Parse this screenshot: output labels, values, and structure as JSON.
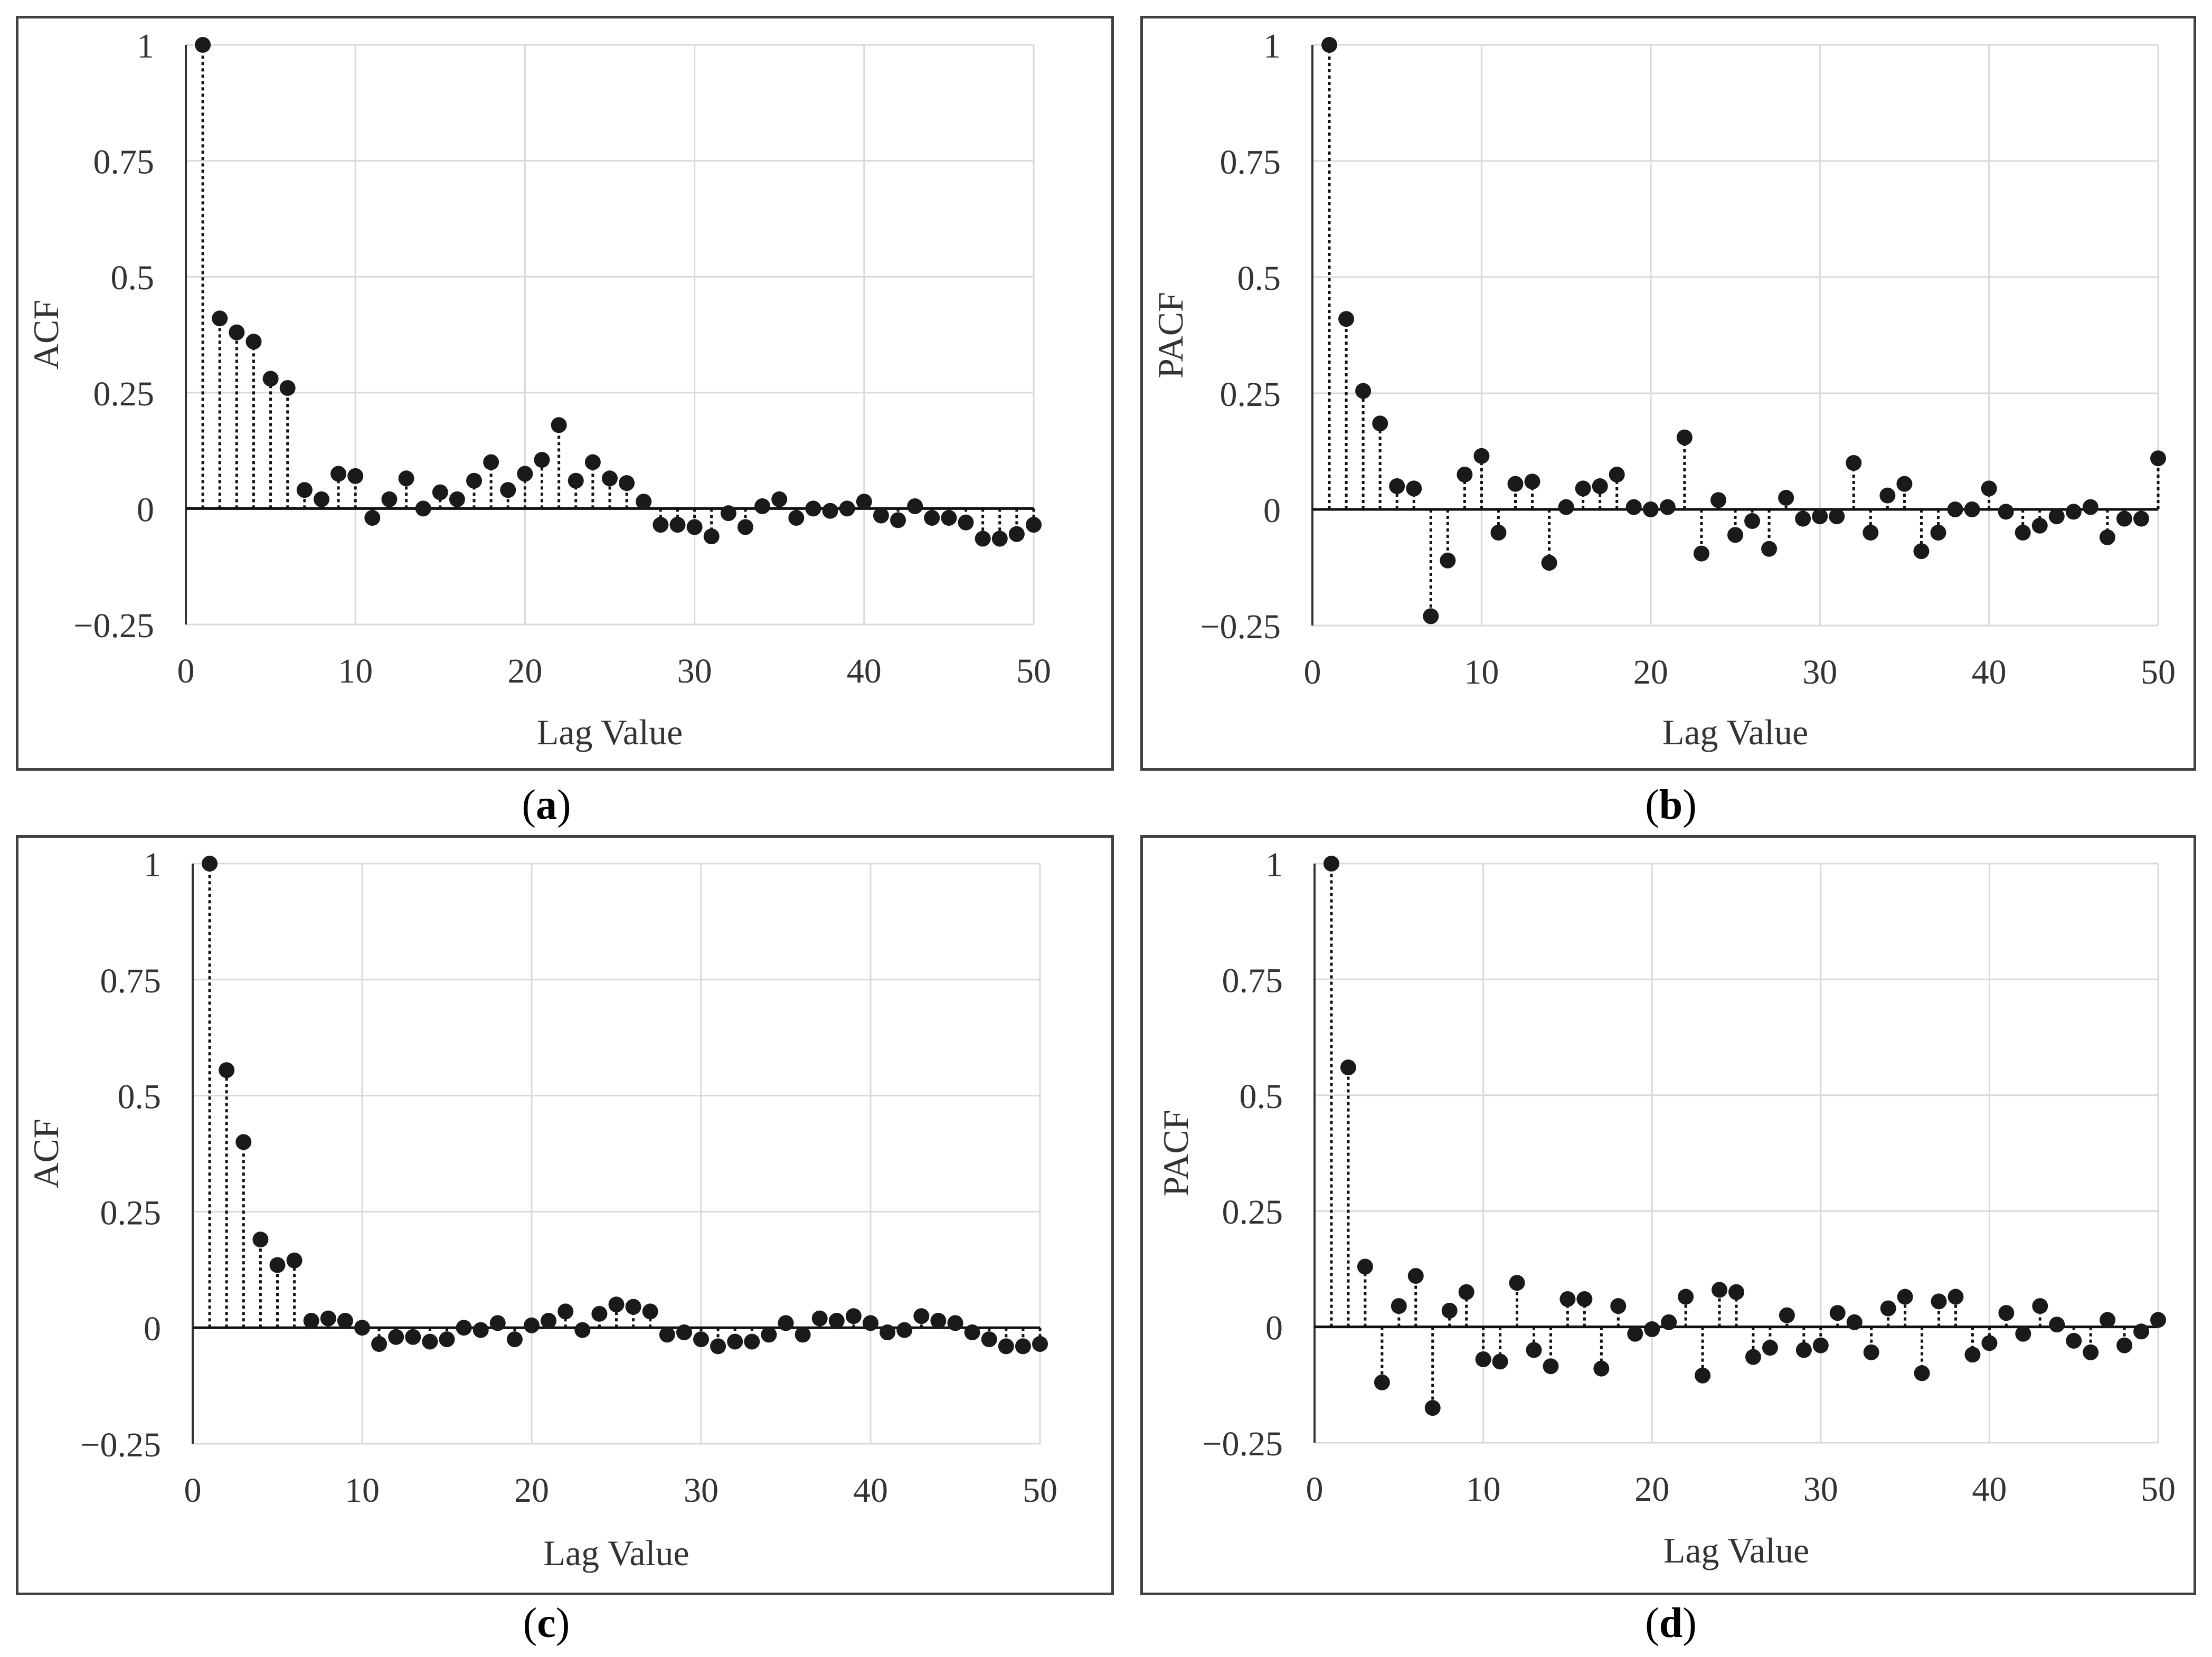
{
  "chart_data": [
    {
      "type": "stem",
      "label": "a",
      "ylabel": "ACF",
      "xlabel": "Lag Value",
      "xlim": [
        0,
        50
      ],
      "ylim": [
        -0.25,
        1
      ],
      "xticks": [
        "0",
        "10",
        "20",
        "30",
        "40",
        "50"
      ],
      "yticks": [
        "1",
        "0.75",
        "0.5",
        "0.25",
        "0",
        "−0.25"
      ],
      "grid": true,
      "lags": [
        1,
        2,
        3,
        4,
        5,
        6,
        7,
        8,
        9,
        10,
        11,
        12,
        13,
        14,
        15,
        16,
        17,
        18,
        19,
        20,
        21,
        22,
        23,
        24,
        25,
        26,
        27,
        28,
        29,
        30,
        31,
        32,
        33,
        34,
        35,
        36,
        37,
        38,
        39,
        40,
        41,
        42,
        43,
        44,
        45,
        46,
        47,
        48,
        49,
        50
      ],
      "values": [
        1.0,
        0.41,
        0.38,
        0.36,
        0.28,
        0.26,
        0.04,
        0.02,
        0.075,
        0.07,
        -0.02,
        0.02,
        0.065,
        0.0,
        0.035,
        0.02,
        0.06,
        0.1,
        0.04,
        0.075,
        0.105,
        0.18,
        0.06,
        0.1,
        0.065,
        0.055,
        0.015,
        -0.035,
        -0.035,
        -0.04,
        -0.06,
        -0.01,
        -0.04,
        0.005,
        0.02,
        -0.02,
        0.0,
        -0.005,
        0.0,
        0.015,
        -0.015,
        -0.025,
        0.005,
        -0.02,
        -0.02,
        -0.03,
        -0.065,
        -0.065,
        -0.055,
        -0.035
      ]
    },
    {
      "type": "stem",
      "label": "b",
      "ylabel": "PACF",
      "xlabel": "Lag Value",
      "xlim": [
        0,
        50
      ],
      "ylim": [
        -0.25,
        1
      ],
      "xticks": [
        "0",
        "10",
        "20",
        "30",
        "40",
        "50"
      ],
      "yticks": [
        "1",
        "0.75",
        "0.5",
        "0.25",
        "0",
        "−0.25"
      ],
      "grid": true,
      "lags": [
        1,
        2,
        3,
        4,
        5,
        6,
        7,
        8,
        9,
        10,
        11,
        12,
        13,
        14,
        15,
        16,
        17,
        18,
        19,
        20,
        21,
        22,
        23,
        24,
        25,
        26,
        27,
        28,
        29,
        30,
        31,
        32,
        33,
        34,
        35,
        36,
        37,
        38,
        39,
        40,
        41,
        42,
        43,
        44,
        45,
        46,
        47,
        48,
        49,
        50
      ],
      "values": [
        1.0,
        0.41,
        0.255,
        0.185,
        0.05,
        0.045,
        -0.23,
        -0.11,
        0.075,
        0.115,
        -0.05,
        0.055,
        0.06,
        -0.115,
        0.005,
        0.045,
        0.05,
        0.075,
        0.005,
        0.0,
        0.005,
        0.155,
        -0.095,
        0.02,
        -0.055,
        -0.025,
        -0.085,
        0.025,
        -0.02,
        -0.015,
        -0.015,
        0.1,
        -0.05,
        0.03,
        0.055,
        -0.09,
        -0.05,
        0.0,
        0.0,
        0.045,
        -0.005,
        -0.05,
        -0.035,
        -0.015,
        -0.005,
        0.005,
        -0.06,
        -0.02,
        -0.02,
        0.11
      ]
    },
    {
      "type": "stem",
      "label": "c",
      "ylabel": "ACF",
      "xlabel": "Lag Value",
      "xlim": [
        0,
        50
      ],
      "ylim": [
        -0.25,
        1
      ],
      "xticks": [
        "0",
        "10",
        "20",
        "30",
        "40",
        "50"
      ],
      "yticks": [
        "1",
        "0.75",
        "0.5",
        "0.25",
        "0",
        "−0.25"
      ],
      "grid": true,
      "lags": [
        1,
        2,
        3,
        4,
        5,
        6,
        7,
        8,
        9,
        10,
        11,
        12,
        13,
        14,
        15,
        16,
        17,
        18,
        19,
        20,
        21,
        22,
        23,
        24,
        25,
        26,
        27,
        28,
        29,
        30,
        31,
        32,
        33,
        34,
        35,
        36,
        37,
        38,
        39,
        40,
        41,
        42,
        43,
        44,
        45,
        46,
        47,
        48,
        49,
        50
      ],
      "values": [
        1.0,
        0.555,
        0.4,
        0.19,
        0.135,
        0.145,
        0.015,
        0.02,
        0.015,
        0.0,
        -0.035,
        -0.02,
        -0.02,
        -0.03,
        -0.025,
        0.0,
        -0.005,
        0.01,
        -0.025,
        0.005,
        0.015,
        0.035,
        -0.005,
        0.03,
        0.05,
        0.045,
        0.035,
        -0.015,
        -0.01,
        -0.025,
        -0.04,
        -0.03,
        -0.03,
        -0.015,
        0.01,
        -0.015,
        0.02,
        0.015,
        0.025,
        0.01,
        -0.01,
        -0.005,
        0.025,
        0.015,
        0.01,
        -0.01,
        -0.025,
        -0.04,
        -0.04,
        -0.035
      ]
    },
    {
      "type": "stem",
      "label": "d",
      "ylabel": "PACF",
      "xlabel": "Lag Value",
      "xlim": [
        0,
        50
      ],
      "ylim": [
        -0.25,
        1
      ],
      "xticks": [
        "0",
        "10",
        "20",
        "30",
        "40",
        "50"
      ],
      "yticks": [
        "1",
        "0.75",
        "0.5",
        "0.25",
        "0",
        "−0.25"
      ],
      "grid": true,
      "lags": [
        1,
        2,
        3,
        4,
        5,
        6,
        7,
        8,
        9,
        10,
        11,
        12,
        13,
        14,
        15,
        16,
        17,
        18,
        19,
        20,
        21,
        22,
        23,
        24,
        25,
        26,
        27,
        28,
        29,
        30,
        31,
        32,
        33,
        34,
        35,
        36,
        37,
        38,
        39,
        40,
        41,
        42,
        43,
        44,
        45,
        46,
        47,
        48,
        49,
        50
      ],
      "values": [
        1.0,
        0.56,
        0.13,
        -0.12,
        0.045,
        0.11,
        -0.175,
        0.035,
        0.075,
        -0.07,
        -0.075,
        0.095,
        -0.05,
        -0.085,
        0.06,
        0.06,
        -0.09,
        0.045,
        -0.015,
        -0.005,
        0.01,
        0.065,
        -0.105,
        0.08,
        0.075,
        -0.065,
        -0.045,
        0.025,
        -0.05,
        -0.04,
        0.03,
        0.01,
        -0.055,
        0.04,
        0.065,
        -0.1,
        0.055,
        0.065,
        -0.06,
        -0.035,
        0.03,
        -0.015,
        0.045,
        0.005,
        -0.03,
        -0.055,
        0.015,
        -0.04,
        -0.01,
        0.015
      ]
    }
  ]
}
